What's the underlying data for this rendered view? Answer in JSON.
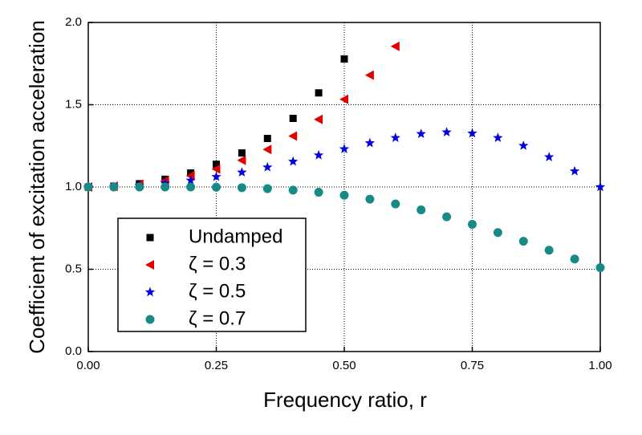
{
  "chart_data": {
    "type": "scatter",
    "x_label": "Frequency ratio, r",
    "y_label": "Coefficient of excitation acceleration",
    "x": [
      0,
      0.05,
      0.1,
      0.15,
      0.2,
      0.25,
      0.3,
      0.35,
      0.4,
      0.45,
      0.5,
      0.55,
      0.6,
      0.65,
      0.7,
      0.75,
      0.8,
      0.85,
      0.9,
      0.95,
      1.0
    ],
    "series": [
      {
        "name": "Undamped",
        "color": "#000000",
        "marker": "square",
        "values": [
          1.0,
          1.005,
          1.02,
          1.047,
          1.085,
          1.138,
          1.207,
          1.295,
          1.417,
          1.572,
          1.778,
          null,
          null,
          null,
          null,
          null,
          null,
          null,
          null,
          null,
          null
        ]
      },
      {
        "name": "ζ = 0.3",
        "color": "#e00000",
        "marker": "triangle-left",
        "values": [
          1.0,
          1.004,
          1.017,
          1.038,
          1.068,
          1.109,
          1.162,
          1.228,
          1.31,
          1.411,
          1.533,
          1.68,
          1.855,
          null,
          null,
          null,
          null,
          null,
          null,
          null,
          null
        ]
      },
      {
        "name": "ζ = 0.5",
        "color": "#0000e0",
        "marker": "star",
        "values": [
          1.0,
          1.002,
          1.01,
          1.022,
          1.04,
          1.062,
          1.089,
          1.12,
          1.155,
          1.193,
          1.231,
          1.267,
          1.299,
          1.323,
          1.333,
          1.326,
          1.299,
          1.251,
          1.182,
          1.096,
          1.0
        ]
      },
      {
        "name": "ζ = 0.7",
        "color": "#168a86",
        "marker": "circle",
        "values": [
          1.0,
          1.0,
          1.0,
          1.0,
          1.0,
          0.999,
          0.996,
          0.99,
          0.981,
          0.968,
          0.95,
          0.926,
          0.897,
          0.861,
          0.819,
          0.773,
          0.723,
          0.67,
          0.616,
          0.562,
          0.51
        ]
      }
    ],
    "xlim": [
      0,
      1
    ],
    "ylim": [
      0,
      2
    ],
    "xticks": [
      {
        "value": 0,
        "label": "0.00"
      },
      {
        "value": 0.25,
        "label": "0.25"
      },
      {
        "value": 0.5,
        "label": "0.50"
      },
      {
        "value": 0.75,
        "label": "0.75"
      },
      {
        "value": 1,
        "label": "1.00"
      }
    ],
    "yticks": [
      {
        "value": 0,
        "label": "0.0"
      },
      {
        "value": 0.5,
        "label": "0.5"
      },
      {
        "value": 1,
        "label": "1.0"
      },
      {
        "value": 1.5,
        "label": "1.5"
      },
      {
        "value": 2,
        "label": "2.0"
      }
    ],
    "grid": true,
    "legend": "lower-left"
  }
}
